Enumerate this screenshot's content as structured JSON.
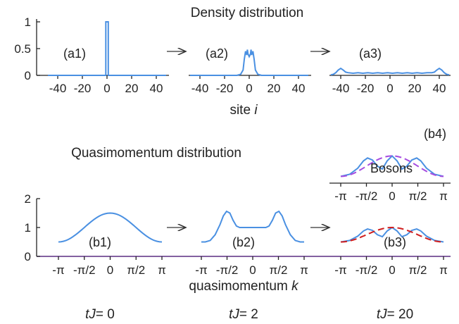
{
  "title_top": "Density distribution",
  "title_mid": "Quasimomentum distribution",
  "xlabel_site": "site",
  "xlabel_site_var": "i",
  "xlabel_k": "quasimomentum",
  "xlabel_k_var": "k",
  "times": [
    {
      "lhs": "tJ",
      "eq": "= 0"
    },
    {
      "lhs": "tJ",
      "eq": "= 2"
    },
    {
      "lhs": "tJ",
      "eq": "= 20"
    }
  ],
  "density_yticks": [
    "1",
    "0.5",
    "0"
  ],
  "site_ticks": [
    "-40",
    "-20",
    "0",
    "20",
    "40"
  ],
  "quasi_yticks": [
    "2",
    "1",
    "0"
  ],
  "k_ticks": [
    "-π",
    "-π/2",
    "0",
    "π/2",
    "π"
  ],
  "chart_data": [
    {
      "type": "line",
      "label": "(a1)",
      "xlabel": "site i",
      "xlim": [
        -50,
        50
      ],
      "ylim": [
        0,
        1
      ],
      "series": [
        {
          "x": [
            -48,
            -1.5,
            -1.5,
            -1,
            -1,
            1,
            1,
            1.5,
            1.5,
            48
          ],
          "y": [
            0,
            0,
            0,
            0,
            1,
            1,
            0,
            0,
            0,
            0
          ]
        }
      ]
    },
    {
      "type": "line",
      "label": "(a2)",
      "xlim": [
        -50,
        50
      ],
      "ylim": [
        0,
        1
      ],
      "series": [
        {
          "x": [
            -48,
            -10,
            -7,
            -5,
            -4,
            -3,
            -2,
            -1.5,
            -1,
            0,
            1,
            1.5,
            2,
            3,
            4,
            5,
            7,
            10,
            48
          ],
          "y": [
            0,
            0,
            0.02,
            0.1,
            0.3,
            0.45,
            0.38,
            0.48,
            0.4,
            0.35,
            0.4,
            0.48,
            0.38,
            0.45,
            0.3,
            0.1,
            0.02,
            0,
            0
          ]
        }
      ]
    },
    {
      "type": "line",
      "label": "(a3)",
      "xlim": [
        -50,
        50
      ],
      "ylim": [
        0,
        1
      ],
      "series": [
        {
          "x": [
            -48,
            -46,
            -44,
            -42,
            -40,
            -38,
            -36,
            -34,
            -30,
            -26,
            -22,
            -18,
            -14,
            -10,
            -6,
            -2,
            2,
            6,
            10,
            14,
            18,
            22,
            26,
            30,
            34,
            36,
            38,
            40,
            42,
            44,
            46,
            48
          ],
          "y": [
            0.01,
            0.02,
            0.05,
            0.1,
            0.13,
            0.1,
            0.06,
            0.05,
            0.04,
            0.05,
            0.04,
            0.05,
            0.04,
            0.05,
            0.04,
            0.05,
            0.04,
            0.05,
            0.04,
            0.05,
            0.04,
            0.05,
            0.04,
            0.05,
            0.05,
            0.06,
            0.1,
            0.13,
            0.1,
            0.05,
            0.02,
            0.01
          ]
        }
      ]
    },
    {
      "type": "line",
      "label": "(b1)",
      "xlabel": "quasimomentum k",
      "xlim": [
        -3.1416,
        3.1416
      ],
      "ylim": [
        0,
        2
      ],
      "series": [
        {
          "function": "1 + 0.5*cos(k)",
          "range": [
            -3.1416,
            3.1416
          ]
        }
      ]
    },
    {
      "type": "line",
      "label": "(b2)",
      "xlim": [
        -3.1416,
        3.1416
      ],
      "ylim": [
        0,
        2
      ],
      "series": [
        {
          "x": [
            -3.14,
            -2.9,
            -2.6,
            -2.3,
            -2.0,
            -1.8,
            -1.6,
            -1.4,
            -1.2,
            -1.0,
            -0.8,
            -0.5,
            0,
            0.5,
            0.8,
            1.0,
            1.2,
            1.4,
            1.6,
            1.8,
            2.0,
            2.3,
            2.6,
            2.9,
            3.14
          ],
          "y": [
            0.5,
            0.5,
            0.55,
            0.75,
            1.1,
            1.4,
            1.56,
            1.5,
            1.25,
            1.05,
            1.0,
            1.0,
            1.0,
            1.0,
            1.0,
            1.05,
            1.25,
            1.5,
            1.56,
            1.4,
            1.1,
            0.75,
            0.55,
            0.5,
            0.5
          ]
        }
      ]
    },
    {
      "type": "line",
      "label": "(b3)",
      "xlim": [
        -3.1416,
        3.1416
      ],
      "series": [
        {
          "x": [
            -3.14,
            -2.6,
            -2.1,
            -1.75,
            -1.5,
            -1.2,
            -0.9,
            -0.6,
            -0.3,
            0,
            0.3,
            0.6,
            0.9,
            1.2,
            1.5,
            1.75,
            2.1,
            2.6,
            3.14
          ],
          "y": [
            0.5,
            0.55,
            0.7,
            0.88,
            0.95,
            0.9,
            0.75,
            0.68,
            0.88,
            1.0,
            0.88,
            0.68,
            0.75,
            0.9,
            0.95,
            0.88,
            0.7,
            0.55,
            0.5
          ]
        },
        {
          "function": "0.75 + 0.25*cos(k)",
          "style": "dashed",
          "color": "#d01f1f"
        }
      ]
    },
    {
      "type": "line",
      "label": "(b4)",
      "annotation": "Bosons",
      "xlim": [
        -3.1416,
        3.1416
      ],
      "series": [
        {
          "x": [
            -3.14,
            -2.6,
            -2.1,
            -1.75,
            -1.5,
            -1.2,
            -0.9,
            -0.6,
            -0.3,
            0,
            0.3,
            0.6,
            0.9,
            1.2,
            1.5,
            1.75,
            2.1,
            2.6,
            3.14
          ],
          "y": [
            0.5,
            0.55,
            0.7,
            0.88,
            0.95,
            0.9,
            0.75,
            0.68,
            0.88,
            1.0,
            0.88,
            0.68,
            0.75,
            0.9,
            0.95,
            0.88,
            0.7,
            0.55,
            0.5
          ]
        },
        {
          "function": "0.75 + 0.25*cos(k)",
          "style": "dashed",
          "color": "#a64ce0"
        }
      ]
    }
  ]
}
